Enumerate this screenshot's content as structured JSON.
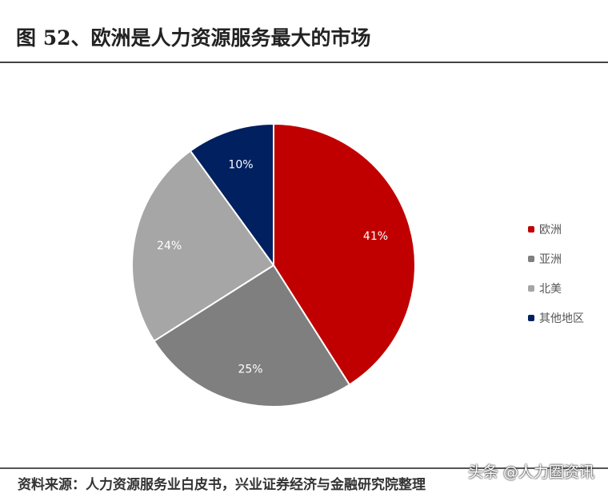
{
  "title": "图 52、欧洲是人力资源服务最大的市场",
  "source": "资料来源：人力资源服务业白皮书，兴业证券经济与金融研究院整理",
  "watermark": "头条 @人力圈资讯",
  "chart_data": {
    "type": "pie",
    "title": "",
    "start": "top, clockwise",
    "legend_position": "right",
    "slices": [
      {
        "name": "欧洲",
        "value": 41,
        "label": "41%",
        "color": "#c00000"
      },
      {
        "name": "亚洲",
        "value": 25,
        "label": "25%",
        "color": "#7f7f7f"
      },
      {
        "name": "北美",
        "value": 24,
        "label": "24%",
        "color": "#a6a6a6"
      },
      {
        "name": "其他地区",
        "value": 10,
        "label": "10%",
        "color": "#002060"
      }
    ]
  }
}
